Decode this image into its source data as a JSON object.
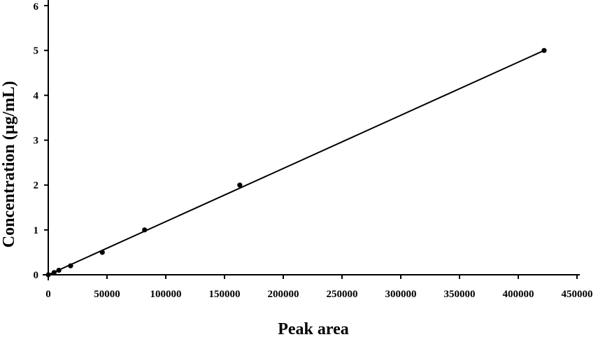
{
  "chart_data": {
    "type": "scatter",
    "title": "",
    "xlabel": "Peak area",
    "ylabel": "Concentration (µg/mL)",
    "xlim": [
      0,
      450000
    ],
    "ylim": [
      0,
      6
    ],
    "x_ticks": [
      "0",
      "50000",
      "100000",
      "150000",
      "200000",
      "250000",
      "300000",
      "350000",
      "400000",
      "450000"
    ],
    "y_ticks": [
      "0",
      "1",
      "2",
      "3",
      "4",
      "5",
      "6"
    ],
    "grid": false,
    "legend": "none",
    "series": [
      {
        "x": [
          0,
          5000,
          9000,
          19000,
          46000,
          82000,
          163000,
          422000
        ],
        "y": [
          0,
          0.05,
          0.1,
          0.2,
          0.5,
          1,
          2,
          5
        ]
      }
    ],
    "trendline": {
      "x": [
        0,
        422000
      ],
      "y": [
        0,
        5.0
      ]
    },
    "colors": {
      "points": "#000000",
      "line": "#000000",
      "axes": "#000000"
    }
  }
}
